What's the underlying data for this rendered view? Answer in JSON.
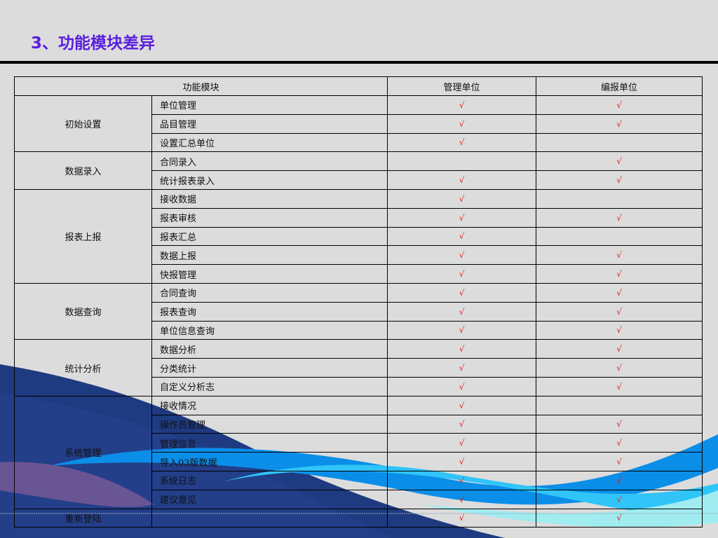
{
  "title": "3、功能模块差异",
  "colors": {
    "title": "#5a1ee0",
    "check": "#e02020",
    "background": "#dcdcdc"
  },
  "table": {
    "headers": [
      "功能模块",
      "管理单位",
      "编报单位"
    ],
    "check_symbol": "√",
    "groups": [
      {
        "name": "初始设置",
        "items": [
          {
            "name": "单位管理",
            "admin": true,
            "reporter": true
          },
          {
            "name": "品目管理",
            "admin": true,
            "reporter": true
          },
          {
            "name": "设置汇总单位",
            "admin": true,
            "reporter": false
          }
        ]
      },
      {
        "name": "数据录入",
        "items": [
          {
            "name": "合同录入",
            "admin": false,
            "reporter": true
          },
          {
            "name": "统计报表录入",
            "admin": true,
            "reporter": true
          }
        ]
      },
      {
        "name": "报表上报",
        "items": [
          {
            "name": "接收数据",
            "admin": true,
            "reporter": false
          },
          {
            "name": "报表审核",
            "admin": true,
            "reporter": true
          },
          {
            "name": "报表汇总",
            "admin": true,
            "reporter": false
          },
          {
            "name": "数据上报",
            "admin": true,
            "reporter": true
          },
          {
            "name": "快报管理",
            "admin": true,
            "reporter": true
          }
        ]
      },
      {
        "name": "数据查询",
        "items": [
          {
            "name": "合同查询",
            "admin": true,
            "reporter": true
          },
          {
            "name": "报表查询",
            "admin": true,
            "reporter": true
          },
          {
            "name": "单位信息查询",
            "admin": true,
            "reporter": true
          }
        ]
      },
      {
        "name": "统计分析",
        "items": [
          {
            "name": "数据分析",
            "admin": true,
            "reporter": true
          },
          {
            "name": "分类统计",
            "admin": true,
            "reporter": true
          },
          {
            "name": "自定义分析志",
            "admin": true,
            "reporter": true
          }
        ]
      },
      {
        "name": "系统管理",
        "items": [
          {
            "name": "接收情况",
            "admin": true,
            "reporter": false
          },
          {
            "name": "操作员管理",
            "admin": true,
            "reporter": true
          },
          {
            "name": "管理信息",
            "admin": true,
            "reporter": true
          },
          {
            "name": "导入03版数据",
            "admin": true,
            "reporter": true
          },
          {
            "name": "系统日志",
            "admin": true,
            "reporter": true
          },
          {
            "name": "建议意见",
            "admin": true,
            "reporter": true
          }
        ]
      },
      {
        "name": "重新登陆",
        "items": [
          {
            "name": "",
            "admin": true,
            "reporter": true
          }
        ]
      }
    ]
  }
}
